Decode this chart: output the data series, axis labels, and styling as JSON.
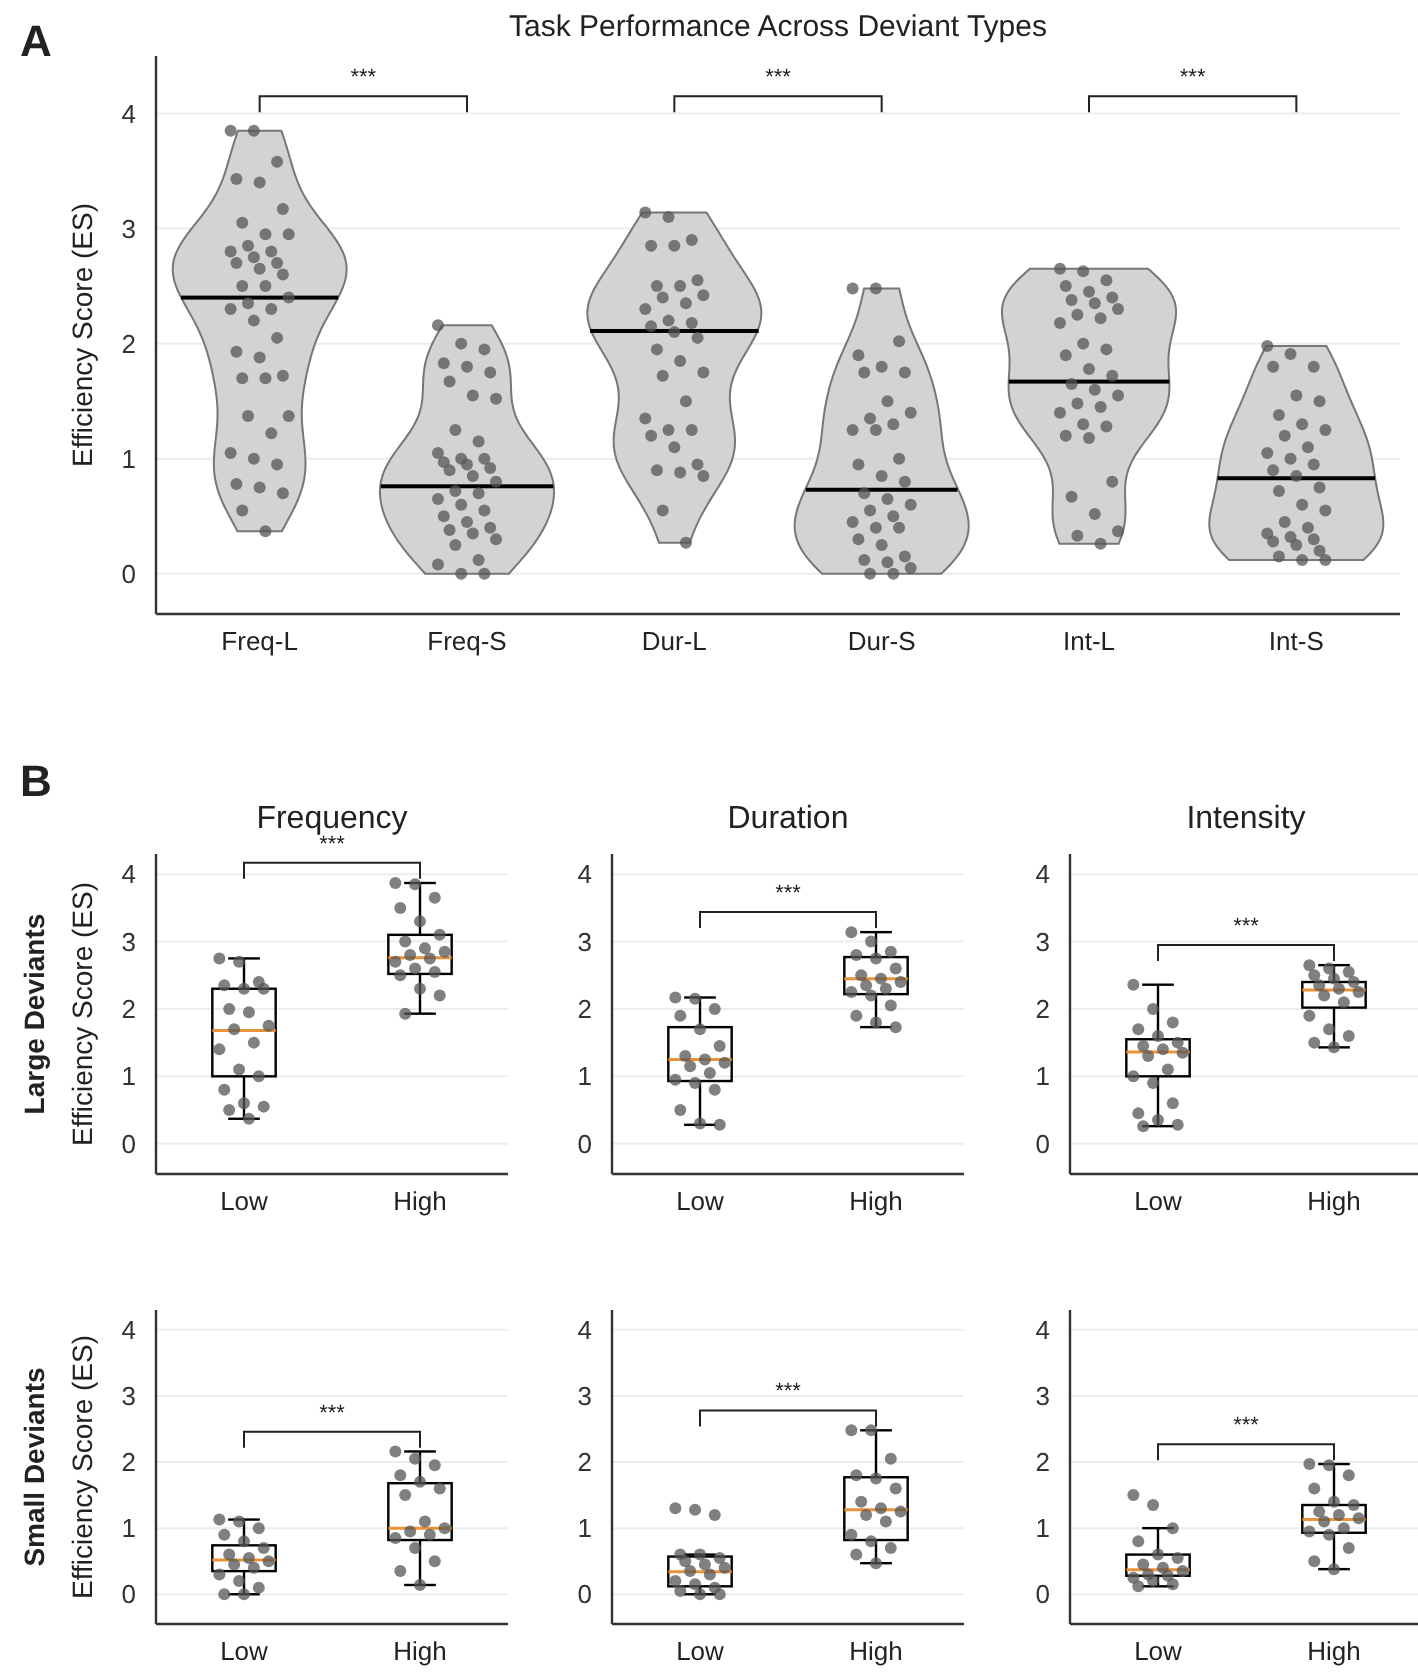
{
  "chart_data": [
    {
      "type": "box",
      "title": "Task Performance Across Deviant Types",
      "ylabel": "Efficiency Score (ES)",
      "categories": [
        "Freq-L",
        "Freq-S",
        "Dur-L",
        "Dur-S",
        "Int-L",
        "Int-S"
      ],
      "ylim": [
        -0.35,
        4.5
      ],
      "yticks": [
        0,
        1,
        2,
        3,
        4
      ],
      "grid": "y",
      "annotations": [
        "A",
        "***",
        "***",
        "***"
      ],
      "series": [
        {
          "color": "#000000",
          "boxes": [
            {
              "low": 2.4,
              "q1": 2.4,
              "median": 2.4,
              "q3": 2.4,
              "high": 2.4
            },
            {
              "low": 0.76,
              "q1": 0.76,
              "median": 0.76,
              "q3": 0.76,
              "high": 0.76
            },
            {
              "low": 2.11,
              "q1": 2.11,
              "median": 2.11,
              "q3": 2.11,
              "high": 2.11
            },
            {
              "low": 0.73,
              "q1": 0.73,
              "median": 0.73,
              "q3": 0.73,
              "high": 0.73
            },
            {
              "low": 1.67,
              "q1": 1.67,
              "median": 1.67,
              "q3": 1.67,
              "high": 1.67
            },
            {
              "low": 0.83,
              "q1": 0.83,
              "median": 0.83,
              "q3": 0.83,
              "high": 0.83
            }
          ]
        },
        {
          "type": "scatter",
          "color": "#555555",
          "x": [
            "Freq-L",
            "Freq-L",
            "Freq-L",
            "Freq-L",
            "Freq-L",
            "Freq-L",
            "Freq-L",
            "Freq-L",
            "Freq-L",
            "Freq-L",
            "Freq-L",
            "Freq-L",
            "Freq-L",
            "Freq-L",
            "Freq-L",
            "Freq-L",
            "Freq-L",
            "Freq-L",
            "Freq-L",
            "Freq-L",
            "Freq-L",
            "Freq-L",
            "Freq-L",
            "Freq-L",
            "Freq-L",
            "Freq-L",
            "Freq-L",
            "Freq-L",
            "Freq-L",
            "Freq-L",
            "Freq-L",
            "Freq-L",
            "Freq-L",
            "Freq-L",
            "Freq-L",
            "Freq-L",
            "Freq-L",
            "Freq-L",
            "Freq-L",
            "Freq-L",
            "Freq-L"
          ],
          "values": [
            3.85,
            3.85,
            3.58,
            3.43,
            3.4,
            3.17,
            3.05,
            2.95,
            2.95,
            2.85,
            2.8,
            2.8,
            2.75,
            2.7,
            2.7,
            2.65,
            2.6,
            2.5,
            2.5,
            2.4,
            2.35,
            2.3,
            2.3,
            2.2,
            2.05,
            1.93,
            1.88,
            1.72,
            1.7,
            1.7,
            1.37,
            1.37,
            1.22,
            1.05,
            1.0,
            0.95,
            0.78,
            0.75,
            0.7,
            0.55,
            0.37
          ]
        },
        {
          "type": "scatter",
          "color": "#555555",
          "x": [
            "Freq-S",
            "Freq-S",
            "Freq-S",
            "Freq-S",
            "Freq-S",
            "Freq-S",
            "Freq-S",
            "Freq-S",
            "Freq-S",
            "Freq-S",
            "Freq-S",
            "Freq-S",
            "Freq-S",
            "Freq-S",
            "Freq-S",
            "Freq-S",
            "Freq-S",
            "Freq-S",
            "Freq-S",
            "Freq-S",
            "Freq-S",
            "Freq-S",
            "Freq-S",
            "Freq-S",
            "Freq-S",
            "Freq-S",
            "Freq-S",
            "Freq-S",
            "Freq-S",
            "Freq-S",
            "Freq-S",
            "Freq-S",
            "Freq-S",
            "Freq-S",
            "Freq-S",
            "Freq-S"
          ],
          "values": [
            2.16,
            2.0,
            1.95,
            1.83,
            1.8,
            1.75,
            1.67,
            1.55,
            1.52,
            1.25,
            1.15,
            1.05,
            1.0,
            1.0,
            0.97,
            0.95,
            0.92,
            0.9,
            0.85,
            0.8,
            0.72,
            0.7,
            0.65,
            0.6,
            0.55,
            0.5,
            0.45,
            0.4,
            0.38,
            0.35,
            0.3,
            0.25,
            0.12,
            0.08,
            0.0,
            0.0
          ]
        },
        {
          "type": "scatter",
          "color": "#555555",
          "x": [
            "Dur-L",
            "Dur-L",
            "Dur-L",
            "Dur-L",
            "Dur-L",
            "Dur-L",
            "Dur-L",
            "Dur-L",
            "Dur-L",
            "Dur-L",
            "Dur-L",
            "Dur-L",
            "Dur-L",
            "Dur-L",
            "Dur-L",
            "Dur-L",
            "Dur-L",
            "Dur-L",
            "Dur-L",
            "Dur-L",
            "Dur-L",
            "Dur-L",
            "Dur-L",
            "Dur-L",
            "Dur-L",
            "Dur-L",
            "Dur-L",
            "Dur-L",
            "Dur-L",
            "Dur-L",
            "Dur-L",
            "Dur-L",
            "Dur-L"
          ],
          "values": [
            3.14,
            3.1,
            2.9,
            2.85,
            2.85,
            2.55,
            2.5,
            2.5,
            2.42,
            2.4,
            2.35,
            2.3,
            2.2,
            2.18,
            2.15,
            2.1,
            2.05,
            1.95,
            1.85,
            1.75,
            1.72,
            1.5,
            1.35,
            1.25,
            1.25,
            1.2,
            1.1,
            0.95,
            0.9,
            0.88,
            0.85,
            0.55,
            0.27
          ]
        },
        {
          "type": "scatter",
          "color": "#555555",
          "x": [
            "Dur-S",
            "Dur-S",
            "Dur-S",
            "Dur-S",
            "Dur-S",
            "Dur-S",
            "Dur-S",
            "Dur-S",
            "Dur-S",
            "Dur-S",
            "Dur-S",
            "Dur-S",
            "Dur-S",
            "Dur-S",
            "Dur-S",
            "Dur-S",
            "Dur-S",
            "Dur-S",
            "Dur-S",
            "Dur-S",
            "Dur-S",
            "Dur-S",
            "Dur-S",
            "Dur-S",
            "Dur-S",
            "Dur-S",
            "Dur-S",
            "Dur-S",
            "Dur-S",
            "Dur-S",
            "Dur-S",
            "Dur-S",
            "Dur-S"
          ],
          "values": [
            2.48,
            2.48,
            2.02,
            1.9,
            1.8,
            1.75,
            1.75,
            1.5,
            1.4,
            1.35,
            1.3,
            1.25,
            1.25,
            1.0,
            0.95,
            0.85,
            0.8,
            0.7,
            0.65,
            0.6,
            0.55,
            0.5,
            0.45,
            0.4,
            0.4,
            0.3,
            0.25,
            0.15,
            0.12,
            0.1,
            0.05,
            0.0,
            0.0
          ]
        },
        {
          "type": "scatter",
          "color": "#555555",
          "x": [
            "Int-L",
            "Int-L",
            "Int-L",
            "Int-L",
            "Int-L",
            "Int-L",
            "Int-L",
            "Int-L",
            "Int-L",
            "Int-L",
            "Int-L",
            "Int-L",
            "Int-L",
            "Int-L",
            "Int-L",
            "Int-L",
            "Int-L",
            "Int-L",
            "Int-L",
            "Int-L",
            "Int-L",
            "Int-L",
            "Int-L",
            "Int-L",
            "Int-L",
            "Int-L",
            "Int-L",
            "Int-L",
            "Int-L",
            "Int-L",
            "Int-L",
            "Int-L",
            "Int-L"
          ],
          "values": [
            2.65,
            2.63,
            2.55,
            2.5,
            2.45,
            2.4,
            2.38,
            2.35,
            2.3,
            2.25,
            2.22,
            2.18,
            2.0,
            1.95,
            1.9,
            1.78,
            1.72,
            1.65,
            1.6,
            1.55,
            1.48,
            1.45,
            1.4,
            1.3,
            1.28,
            1.2,
            1.18,
            0.8,
            0.67,
            0.52,
            0.37,
            0.33,
            0.26
          ]
        },
        {
          "type": "scatter",
          "color": "#555555",
          "x": [
            "Int-S",
            "Int-S",
            "Int-S",
            "Int-S",
            "Int-S",
            "Int-S",
            "Int-S",
            "Int-S",
            "Int-S",
            "Int-S",
            "Int-S",
            "Int-S",
            "Int-S",
            "Int-S",
            "Int-S",
            "Int-S",
            "Int-S",
            "Int-S",
            "Int-S",
            "Int-S",
            "Int-S",
            "Int-S",
            "Int-S",
            "Int-S",
            "Int-S",
            "Int-S",
            "Int-S",
            "Int-S",
            "Int-S",
            "Int-S",
            "Int-S"
          ],
          "values": [
            1.98,
            1.91,
            1.8,
            1.8,
            1.55,
            1.5,
            1.38,
            1.3,
            1.25,
            1.2,
            1.1,
            1.05,
            1.0,
            0.95,
            0.9,
            0.85,
            0.75,
            0.72,
            0.6,
            0.55,
            0.45,
            0.4,
            0.35,
            0.32,
            0.3,
            0.28,
            0.25,
            0.2,
            0.15,
            0.12,
            0.12
          ]
        }
      ]
    },
    {
      "type": "box",
      "title": "Frequency",
      "ylabel": "Efficiency Score (ES)",
      "categories": [
        "Low",
        "High"
      ],
      "ylim": [
        -0.45,
        4.3
      ],
      "yticks": [
        0,
        1,
        2,
        3,
        4
      ],
      "grid": "y",
      "annotations": [
        "B",
        "Large Deviants",
        "***"
      ],
      "series": [
        {
          "color": "#000000",
          "boxes": [
            {
              "low": 0.37,
              "q1": 1.0,
              "median": 1.68,
              "q3": 2.3,
              "high": 2.75
            },
            {
              "low": 1.93,
              "q1": 2.52,
              "median": 2.76,
              "q3": 3.1,
              "high": 3.87
            }
          ]
        },
        {
          "type": "scatter",
          "color": "#555555",
          "x": [
            "Low",
            "Low",
            "Low",
            "Low",
            "Low",
            "Low",
            "Low",
            "Low",
            "Low",
            "Low",
            "Low",
            "Low",
            "Low",
            "Low",
            "Low",
            "Low",
            "Low",
            "Low",
            "Low"
          ],
          "values": [
            2.75,
            2.7,
            2.4,
            2.35,
            2.3,
            2.3,
            2.0,
            1.95,
            1.75,
            1.7,
            1.5,
            1.4,
            1.1,
            1.0,
            0.8,
            0.6,
            0.55,
            0.5,
            0.37
          ]
        },
        {
          "type": "scatter",
          "color": "#555555",
          "x": [
            "High",
            "High",
            "High",
            "High",
            "High",
            "High",
            "High",
            "High",
            "High",
            "High",
            "High",
            "High",
            "High",
            "High",
            "High",
            "High",
            "High",
            "High"
          ],
          "values": [
            3.87,
            3.85,
            3.65,
            3.5,
            3.3,
            3.1,
            3.0,
            2.9,
            2.85,
            2.8,
            2.75,
            2.7,
            2.6,
            2.55,
            2.5,
            2.3,
            2.2,
            1.93
          ]
        }
      ]
    },
    {
      "type": "box",
      "title": "Duration",
      "categories": [
        "Low",
        "High"
      ],
      "ylim": [
        -0.45,
        4.3
      ],
      "yticks": [
        0,
        1,
        2,
        3,
        4
      ],
      "grid": "y",
      "annotations": [
        "***"
      ],
      "series": [
        {
          "color": "#000000",
          "boxes": [
            {
              "low": 0.28,
              "q1": 0.93,
              "median": 1.25,
              "q3": 1.73,
              "high": 2.17
            },
            {
              "low": 1.73,
              "q1": 2.22,
              "median": 2.45,
              "q3": 2.77,
              "high": 3.14
            }
          ]
        },
        {
          "type": "scatter",
          "color": "#555555",
          "x": [
            "Low",
            "Low",
            "Low",
            "Low",
            "Low",
            "Low",
            "Low",
            "Low",
            "Low",
            "Low",
            "Low",
            "Low",
            "Low",
            "Low",
            "Low",
            "Low",
            "Low"
          ],
          "values": [
            2.17,
            2.15,
            2.0,
            1.9,
            1.7,
            1.45,
            1.3,
            1.25,
            1.2,
            1.15,
            1.05,
            0.95,
            0.9,
            0.8,
            0.5,
            0.3,
            0.28
          ]
        },
        {
          "type": "scatter",
          "color": "#555555",
          "x": [
            "High",
            "High",
            "High",
            "High",
            "High",
            "High",
            "High",
            "High",
            "High",
            "High",
            "High",
            "High",
            "High",
            "High",
            "High",
            "High",
            "High"
          ],
          "values": [
            3.14,
            3.0,
            2.85,
            2.8,
            2.75,
            2.6,
            2.5,
            2.45,
            2.4,
            2.35,
            2.3,
            2.25,
            2.2,
            2.05,
            1.9,
            1.8,
            1.73
          ]
        }
      ]
    },
    {
      "type": "box",
      "title": "Intensity",
      "categories": [
        "Low",
        "High"
      ],
      "ylim": [
        -0.45,
        4.3
      ],
      "yticks": [
        0,
        1,
        2,
        3,
        4
      ],
      "grid": "y",
      "annotations": [
        "***"
      ],
      "series": [
        {
          "color": "#000000",
          "boxes": [
            {
              "low": 0.26,
              "q1": 1.0,
              "median": 1.36,
              "q3": 1.55,
              "high": 2.36
            },
            {
              "low": 1.43,
              "q1": 2.02,
              "median": 2.28,
              "q3": 2.4,
              "high": 2.65
            }
          ]
        },
        {
          "type": "scatter",
          "color": "#555555",
          "x": [
            "Low",
            "Low",
            "Low",
            "Low",
            "Low",
            "Low",
            "Low",
            "Low",
            "Low",
            "Low",
            "Low",
            "Low",
            "Low",
            "Low",
            "Low",
            "Low",
            "Low",
            "Low"
          ],
          "values": [
            2.36,
            2.0,
            1.8,
            1.7,
            1.6,
            1.5,
            1.45,
            1.4,
            1.35,
            1.3,
            1.1,
            1.0,
            0.9,
            0.6,
            0.45,
            0.35,
            0.28,
            0.26
          ]
        },
        {
          "type": "scatter",
          "color": "#555555",
          "x": [
            "High",
            "High",
            "High",
            "High",
            "High",
            "High",
            "High",
            "High",
            "High",
            "High",
            "High",
            "High",
            "High",
            "High",
            "High",
            "High"
          ],
          "values": [
            2.65,
            2.6,
            2.55,
            2.5,
            2.45,
            2.4,
            2.35,
            2.3,
            2.25,
            2.2,
            2.1,
            1.9,
            1.7,
            1.6,
            1.5,
            1.43
          ]
        }
      ]
    },
    {
      "type": "box",
      "ylabel": "Efficiency Score (ES)",
      "categories": [
        "Low",
        "High"
      ],
      "ylim": [
        -0.45,
        4.3
      ],
      "yticks": [
        0,
        1,
        2,
        3,
        4
      ],
      "grid": "y",
      "annotations": [
        "Small Deviants",
        "***"
      ],
      "series": [
        {
          "color": "#000000",
          "boxes": [
            {
              "low": 0,
              "q1": 0.35,
              "median": 0.52,
              "q3": 0.74,
              "high": 1.13
            },
            {
              "low": 0.14,
              "q1": 0.82,
              "median": 1.0,
              "q3": 1.68,
              "high": 2.16
            }
          ]
        },
        {
          "type": "scatter",
          "color": "#555555",
          "x": [
            "Low",
            "Low",
            "Low",
            "Low",
            "Low",
            "Low",
            "Low",
            "Low",
            "Low",
            "Low",
            "Low",
            "Low",
            "Low",
            "Low",
            "Low",
            "Low"
          ],
          "values": [
            1.13,
            1.1,
            1.0,
            0.9,
            0.8,
            0.7,
            0.6,
            0.55,
            0.5,
            0.45,
            0.4,
            0.3,
            0.2,
            0.1,
            0.0,
            0.0
          ]
        },
        {
          "type": "scatter",
          "color": "#555555",
          "x": [
            "High",
            "High",
            "High",
            "High",
            "High",
            "High",
            "High",
            "High",
            "High",
            "High",
            "High",
            "High",
            "High",
            "High",
            "High",
            "High"
          ],
          "values": [
            2.16,
            2.05,
            1.95,
            1.8,
            1.7,
            1.6,
            1.5,
            1.1,
            1.0,
            0.95,
            0.9,
            0.85,
            0.7,
            0.5,
            0.35,
            0.14
          ]
        }
      ]
    },
    {
      "type": "box",
      "categories": [
        "Low",
        "High"
      ],
      "ylim": [
        -0.45,
        4.3
      ],
      "yticks": [
        0,
        1,
        2,
        3,
        4
      ],
      "grid": "y",
      "annotations": [
        "***"
      ],
      "series": [
        {
          "color": "#000000",
          "boxes": [
            {
              "low": 0,
              "q1": 0.12,
              "median": 0.34,
              "q3": 0.57,
              "high": 0.6
            },
            {
              "low": 0.47,
              "q1": 0.82,
              "median": 1.28,
              "q3": 1.77,
              "high": 2.48
            }
          ]
        },
        {
          "type": "scatter",
          "color": "#555555",
          "x": [
            "Low",
            "Low",
            "Low",
            "Low",
            "Low",
            "Low",
            "Low",
            "Low",
            "Low",
            "Low",
            "Low",
            "Low",
            "Low",
            "Low",
            "Low",
            "Low",
            "Low"
          ],
          "values": [
            1.3,
            1.28,
            1.2,
            0.6,
            0.6,
            0.55,
            0.5,
            0.45,
            0.4,
            0.35,
            0.3,
            0.2,
            0.15,
            0.1,
            0.05,
            0.0,
            0.0
          ]
        },
        {
          "type": "scatter",
          "color": "#555555",
          "x": [
            "High",
            "High",
            "High",
            "High",
            "High",
            "High",
            "High",
            "High",
            "High",
            "High",
            "High",
            "High",
            "High",
            "High",
            "High",
            "High"
          ],
          "values": [
            2.48,
            2.48,
            2.05,
            1.8,
            1.75,
            1.6,
            1.4,
            1.3,
            1.25,
            1.2,
            1.1,
            0.9,
            0.8,
            0.7,
            0.6,
            0.47
          ]
        }
      ]
    },
    {
      "type": "box",
      "categories": [
        "Low",
        "High"
      ],
      "ylim": [
        -0.45,
        4.3
      ],
      "yticks": [
        0,
        1,
        2,
        3,
        4
      ],
      "grid": "y",
      "annotations": [
        "***"
      ],
      "series": [
        {
          "color": "#000000",
          "boxes": [
            {
              "low": 0.12,
              "q1": 0.28,
              "median": 0.37,
              "q3": 0.6,
              "high": 1.0
            },
            {
              "low": 0.38,
              "q1": 0.93,
              "median": 1.13,
              "q3": 1.35,
              "high": 1.97
            }
          ]
        },
        {
          "type": "scatter",
          "color": "#555555",
          "x": [
            "Low",
            "Low",
            "Low",
            "Low",
            "Low",
            "Low",
            "Low",
            "Low",
            "Low",
            "Low",
            "Low",
            "Low",
            "Low",
            "Low",
            "Low"
          ],
          "values": [
            1.5,
            1.35,
            1.0,
            0.8,
            0.6,
            0.55,
            0.45,
            0.4,
            0.35,
            0.3,
            0.28,
            0.25,
            0.2,
            0.15,
            0.12
          ]
        },
        {
          "type": "scatter",
          "color": "#555555",
          "x": [
            "High",
            "High",
            "High",
            "High",
            "High",
            "High",
            "High",
            "High",
            "High",
            "High",
            "High",
            "High",
            "High",
            "High",
            "High",
            "High"
          ],
          "values": [
            1.97,
            1.95,
            1.8,
            1.6,
            1.4,
            1.35,
            1.25,
            1.2,
            1.15,
            1.1,
            1.0,
            0.95,
            0.9,
            0.7,
            0.5,
            0.38
          ]
        }
      ]
    }
  ]
}
